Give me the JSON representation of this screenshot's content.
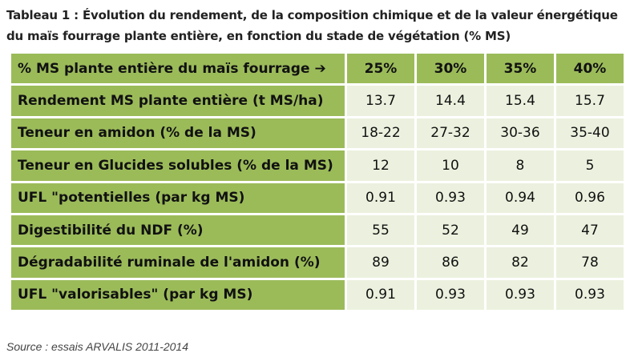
{
  "caption": {
    "line1": "Tableau 1 : Évolution du rendement, de la composition chimique et de la valeur énergétique",
    "line2": "du maïs fourrage plante entière, en fonction du stade de végétation (% MS)"
  },
  "table": {
    "header": {
      "label": "% MS plante entière du maïs fourrage",
      "arrow": "➔",
      "columns": [
        "25%",
        "30%",
        "35%",
        "40%"
      ]
    },
    "rows": [
      {
        "label": "Rendement MS plante entière (t MS/ha)",
        "values": [
          "13.7",
          "14.4",
          "15.4",
          "15.7"
        ]
      },
      {
        "label": "Teneur en amidon (% de la MS)",
        "values": [
          "18-22",
          "27-32",
          "30-36",
          "35-40"
        ]
      },
      {
        "label": "Teneur en Glucides solubles (% de la MS)",
        "values": [
          "12",
          "10",
          "8",
          "5"
        ]
      },
      {
        "label": "UFL \"potentielles (par kg MS)",
        "values": [
          "0.91",
          "0.93",
          "0.94",
          "0.96"
        ]
      },
      {
        "label": "Digestibilité du NDF (%)",
        "values": [
          "55",
          "52",
          "49",
          "47"
        ]
      },
      {
        "label": "Dégradabilité ruminale de l'amidon (%)",
        "values": [
          "89",
          "86",
          "82",
          "78"
        ]
      },
      {
        "label": "UFL \"valorisables\" (par kg MS)",
        "values": [
          "0.91",
          "0.93",
          "0.93",
          "0.93"
        ]
      }
    ]
  },
  "source": "Source : essais ARVALIS 2011-2014",
  "colors": {
    "header_green": "#9bbb59",
    "cell_light": "#ebf1de"
  }
}
